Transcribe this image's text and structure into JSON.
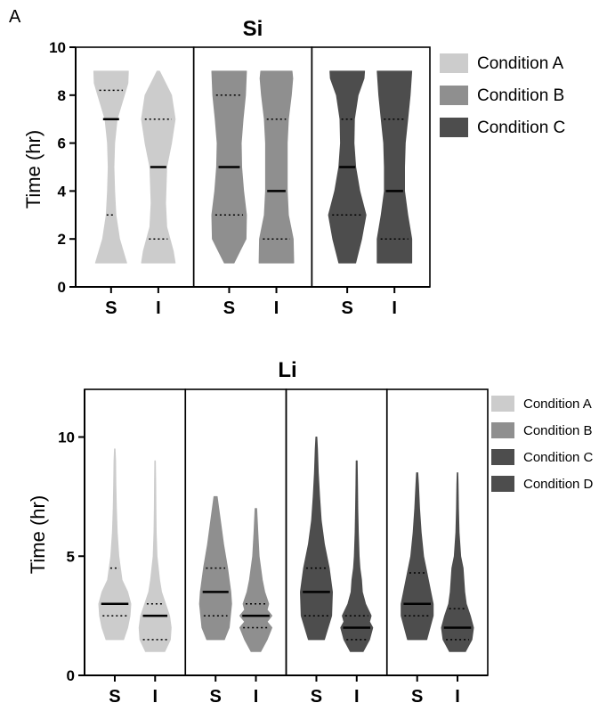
{
  "panel_label": "A",
  "colors": {
    "Condition A": "#cccccc",
    "Condition B": "#8f8f8f",
    "Condition C": "#4d4d4d",
    "Condition D": "#4d4d4d"
  },
  "chart_data": [
    {
      "type": "violin",
      "title": "Si",
      "ylabel": "Time (hr)",
      "ylim": [
        0,
        10
      ],
      "yticks": [
        0,
        2,
        4,
        6,
        8,
        10
      ],
      "legend_position": "right",
      "groups": [
        {
          "name": "Condition A",
          "violins": [
            {
              "label": "S",
              "min": 1,
              "max": 9,
              "median": 7,
              "q1": 3,
              "q3": 8.2,
              "profile": [
                [
                  1,
                  0.65
                ],
                [
                  2,
                  0.35
                ],
                [
                  3,
                  0.2
                ],
                [
                  4,
                  0.15
                ],
                [
                  5,
                  0.12
                ],
                [
                  6,
                  0.15
                ],
                [
                  7,
                  0.25
                ],
                [
                  8,
                  0.55
                ],
                [
                  8.5,
                  0.7
                ],
                [
                  9,
                  0.72
                ]
              ]
            },
            {
              "label": "I",
              "min": 1,
              "max": 9,
              "median": 5,
              "q1": 2,
              "q3": 7,
              "profile": [
                [
                  1,
                  0.7
                ],
                [
                  1.5,
                  0.62
                ],
                [
                  2.5,
                  0.35
                ],
                [
                  3.5,
                  0.3
                ],
                [
                  5,
                  0.35
                ],
                [
                  6,
                  0.55
                ],
                [
                  7,
                  0.7
                ],
                [
                  8,
                  0.55
                ],
                [
                  8.7,
                  0.2
                ],
                [
                  9,
                  0.05
                ]
              ]
            }
          ]
        },
        {
          "name": "Condition B",
          "violins": [
            {
              "label": "S",
              "min": 1,
              "max": 9,
              "median": 5,
              "q1": 3,
              "q3": 8,
              "profile": [
                [
                  1,
                  0.2
                ],
                [
                  1.5,
                  0.45
                ],
                [
                  2,
                  0.7
                ],
                [
                  3,
                  0.72
                ],
                [
                  4,
                  0.6
                ],
                [
                  5,
                  0.52
                ],
                [
                  6,
                  0.5
                ],
                [
                  7,
                  0.58
                ],
                [
                  8,
                  0.68
                ],
                [
                  9,
                  0.72
                ]
              ]
            },
            {
              "label": "I",
              "min": 1,
              "max": 9,
              "median": 4,
              "q1": 2,
              "q3": 7,
              "profile": [
                [
                  1,
                  0.72
                ],
                [
                  2,
                  0.7
                ],
                [
                  3,
                  0.5
                ],
                [
                  4,
                  0.45
                ],
                [
                  5,
                  0.45
                ],
                [
                  6,
                  0.45
                ],
                [
                  7,
                  0.5
                ],
                [
                  8,
                  0.62
                ],
                [
                  8.7,
                  0.68
                ],
                [
                  9,
                  0.65
                ]
              ]
            }
          ]
        },
        {
          "name": "Condition C",
          "violins": [
            {
              "label": "S",
              "min": 1,
              "max": 9,
              "median": 5,
              "q1": 3,
              "q3": 7,
              "profile": [
                [
                  1,
                  0.35
                ],
                [
                  2,
                  0.6
                ],
                [
                  3,
                  0.78
                ],
                [
                  4,
                  0.52
                ],
                [
                  5,
                  0.35
                ],
                [
                  6,
                  0.28
                ],
                [
                  7,
                  0.3
                ],
                [
                  8,
                  0.45
                ],
                [
                  8.7,
                  0.7
                ],
                [
                  9,
                  0.72
                ]
              ]
            },
            {
              "label": "I",
              "min": 1,
              "max": 9,
              "median": 4,
              "q1": 2,
              "q3": 7,
              "profile": [
                [
                  1,
                  0.72
                ],
                [
                  2,
                  0.72
                ],
                [
                  3,
                  0.55
                ],
                [
                  4,
                  0.42
                ],
                [
                  5,
                  0.42
                ],
                [
                  6,
                  0.45
                ],
                [
                  7,
                  0.55
                ],
                [
                  8,
                  0.65
                ],
                [
                  9,
                  0.72
                ]
              ]
            }
          ]
        }
      ],
      "legend": [
        "Condition A",
        "Condition B",
        "Condition C"
      ]
    },
    {
      "type": "violin",
      "title": "Li",
      "ylabel": "Time (hr)",
      "ylim": [
        0,
        12
      ],
      "yticks": [
        0,
        5,
        10
      ],
      "legend_position": "right",
      "groups": [
        {
          "name": "Condition A",
          "violins": [
            {
              "label": "S",
              "min": 1.5,
              "max": 9.5,
              "median": 3,
              "q1": 2.5,
              "q3": 4.5,
              "profile": [
                [
                  1.5,
                  0.55
                ],
                [
                  2,
                  0.8
                ],
                [
                  2.5,
                  0.95
                ],
                [
                  3,
                  1.0
                ],
                [
                  3.5,
                  0.8
                ],
                [
                  4,
                  0.45
                ],
                [
                  5,
                  0.25
                ],
                [
                  6,
                  0.15
                ],
                [
                  7,
                  0.1
                ],
                [
                  8,
                  0.07
                ],
                [
                  9,
                  0.05
                ],
                [
                  9.5,
                  0.02
                ]
              ]
            },
            {
              "label": "I",
              "min": 1,
              "max": 9,
              "median": 2.5,
              "q1": 1.5,
              "q3": 3,
              "profile": [
                [
                  1,
                  0.6
                ],
                [
                  1.5,
                  0.95
                ],
                [
                  2,
                  1.0
                ],
                [
                  2.5,
                  0.9
                ],
                [
                  3,
                  0.65
                ],
                [
                  3.5,
                  0.4
                ],
                [
                  4,
                  0.28
                ],
                [
                  5,
                  0.12
                ],
                [
                  6,
                  0.07
                ],
                [
                  7,
                  0.05
                ],
                [
                  8,
                  0.04
                ],
                [
                  9,
                  0.02
                ]
              ]
            }
          ]
        },
        {
          "name": "Condition B",
          "violins": [
            {
              "label": "S",
              "min": 1.5,
              "max": 7.5,
              "median": 3.5,
              "q1": 2.5,
              "q3": 4.5,
              "profile": [
                [
                  1.5,
                  0.55
                ],
                [
                  2,
                  0.85
                ],
                [
                  3,
                  1.0
                ],
                [
                  3.5,
                  0.95
                ],
                [
                  4.5,
                  0.75
                ],
                [
                  5.5,
                  0.5
                ],
                [
                  6.5,
                  0.3
                ],
                [
                  7,
                  0.2
                ],
                [
                  7.5,
                  0.1
                ]
              ]
            },
            {
              "label": "I",
              "min": 1,
              "max": 7,
              "median": 2.5,
              "q1": 2,
              "q3": 3,
              "profile": [
                [
                  1,
                  0.3
                ],
                [
                  1.5,
                  0.7
                ],
                [
                  2,
                  1.0
                ],
                [
                  2.25,
                  0.7
                ],
                [
                  2.5,
                  1.0
                ],
                [
                  2.75,
                  0.7
                ],
                [
                  3,
                  0.8
                ],
                [
                  3.5,
                  0.55
                ],
                [
                  4,
                  0.4
                ],
                [
                  4.5,
                  0.3
                ],
                [
                  5,
                  0.2
                ],
                [
                  6,
                  0.12
                ],
                [
                  7,
                  0.05
                ]
              ]
            }
          ]
        },
        {
          "name": "Condition C",
          "violins": [
            {
              "label": "S",
              "min": 1.5,
              "max": 10,
              "median": 3.5,
              "q1": 2.5,
              "q3": 4.5,
              "profile": [
                [
                  1.5,
                  0.5
                ],
                [
                  2.5,
                  0.95
                ],
                [
                  3.5,
                  1.0
                ],
                [
                  4.5,
                  0.8
                ],
                [
                  5.5,
                  0.5
                ],
                [
                  6.5,
                  0.3
                ],
                [
                  7.5,
                  0.2
                ],
                [
                  8.5,
                  0.12
                ],
                [
                  9.5,
                  0.07
                ],
                [
                  10,
                  0.03
                ]
              ]
            },
            {
              "label": "I",
              "min": 1,
              "max": 9,
              "median": 2,
              "q1": 1.5,
              "q3": 2.5,
              "profile": [
                [
                  1,
                  0.4
                ],
                [
                  1.5,
                  0.8
                ],
                [
                  2,
                  1.0
                ],
                [
                  2.25,
                  0.8
                ],
                [
                  2.5,
                  0.9
                ],
                [
                  3,
                  0.55
                ],
                [
                  3.5,
                  0.35
                ],
                [
                  4,
                  0.3
                ],
                [
                  4.5,
                  0.2
                ],
                [
                  5,
                  0.15
                ],
                [
                  6,
                  0.1
                ],
                [
                  7,
                  0.07
                ],
                [
                  8,
                  0.05
                ],
                [
                  9,
                  0.03
                ]
              ]
            }
          ]
        },
        {
          "name": "Condition D",
          "violins": [
            {
              "label": "S",
              "min": 1.5,
              "max": 8.5,
              "median": 3,
              "q1": 2.5,
              "q3": 4.3,
              "profile": [
                [
                  1.5,
                  0.6
                ],
                [
                  2.5,
                  1.0
                ],
                [
                  3,
                  1.0
                ],
                [
                  4,
                  0.7
                ],
                [
                  5,
                  0.4
                ],
                [
                  6,
                  0.25
                ],
                [
                  7,
                  0.15
                ],
                [
                  8,
                  0.08
                ],
                [
                  8.5,
                  0.04
                ]
              ]
            },
            {
              "label": "I",
              "min": 1,
              "max": 8.5,
              "median": 2,
              "q1": 1.5,
              "q3": 2.8,
              "profile": [
                [
                  1,
                  0.5
                ],
                [
                  1.5,
                  0.9
                ],
                [
                  2,
                  1.0
                ],
                [
                  2.5,
                  0.8
                ],
                [
                  3,
                  0.55
                ],
                [
                  3.5,
                  0.45
                ],
                [
                  4,
                  0.4
                ],
                [
                  4.5,
                  0.35
                ],
                [
                  5,
                  0.2
                ],
                [
                  6,
                  0.1
                ],
                [
                  7,
                  0.06
                ],
                [
                  8,
                  0.04
                ],
                [
                  8.5,
                  0.02
                ]
              ]
            }
          ]
        }
      ],
      "legend": [
        "Condition A",
        "Condition B",
        "Condition C",
        "Condition D"
      ]
    }
  ]
}
